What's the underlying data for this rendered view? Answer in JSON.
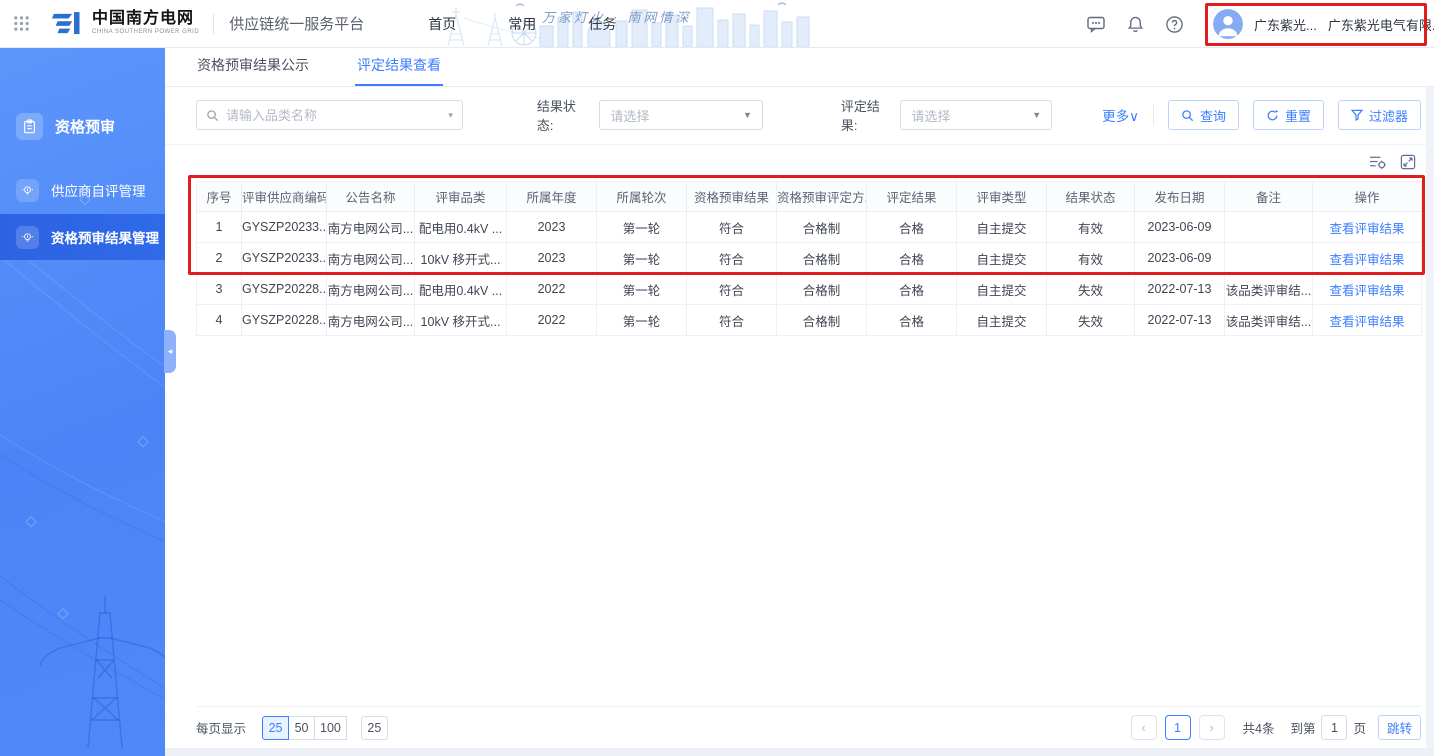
{
  "header": {
    "logo_title": "中国南方电网",
    "logo_subtitle": "CHINA SOUTHERN POWER GRID",
    "platform_title": "供应链统一服务平台",
    "slogan": "万家灯火 · 南网情深",
    "nav_items": [
      {
        "label": "首页"
      },
      {
        "label": "常用"
      },
      {
        "label": "任务"
      }
    ],
    "user_name": "广东紫光...",
    "user_company": "广东紫光电气有限..."
  },
  "sidebar": {
    "items": [
      {
        "label": "资格预审"
      },
      {
        "label": "供应商自评管理"
      },
      {
        "label": "资格预审结果管理"
      }
    ]
  },
  "tabs": [
    {
      "label": "资格预审结果公示"
    },
    {
      "label": "评定结果查看"
    }
  ],
  "filters": {
    "search_placeholder": "请输入品类名称",
    "status_label": "结果状态:",
    "status_value": "请选择",
    "result_label": "评定结果:",
    "result_value": "请选择",
    "more_label": "更多∨",
    "query_label": "查询",
    "reset_label": "重置",
    "filter_label": "过滤器"
  },
  "table": {
    "columns": [
      "序号",
      "评审供应商编码",
      "公告名称",
      "评审品类",
      "所属年度",
      "所属轮次",
      "资格预审结果",
      "资格预审评定方...",
      "评定结果",
      "评审类型",
      "结果状态",
      "发布日期",
      "备注",
      "操作"
    ],
    "action_label": "查看评审结果",
    "rows": [
      {
        "cells": [
          "1",
          "GYSZP20233...",
          "南方电网公司...",
          "配电用0.4kV ...",
          "2023",
          "第一轮",
          "符合",
          "合格制",
          "合格",
          "自主提交",
          "有效",
          "2023-06-09",
          ""
        ]
      },
      {
        "cells": [
          "2",
          "GYSZP20233...",
          "南方电网公司...",
          "10kV 移开式...",
          "2023",
          "第一轮",
          "符合",
          "合格制",
          "合格",
          "自主提交",
          "有效",
          "2023-06-09",
          ""
        ]
      },
      {
        "cells": [
          "3",
          "GYSZP20228...",
          "南方电网公司...",
          "配电用0.4kV ...",
          "2022",
          "第一轮",
          "符合",
          "合格制",
          "合格",
          "自主提交",
          "失效",
          "2022-07-13",
          "该品类评审结..."
        ]
      },
      {
        "cells": [
          "4",
          "GYSZP20228...",
          "南方电网公司...",
          "10kV 移开式...",
          "2022",
          "第一轮",
          "符合",
          "合格制",
          "合格",
          "自主提交",
          "失效",
          "2022-07-13",
          "该品类评审结..."
        ]
      }
    ]
  },
  "pagination": {
    "per_page_label": "每页显示",
    "page_size_options": [
      "25",
      "50",
      "100"
    ],
    "page_size_current": "25",
    "prev_icon": "‹",
    "next_icon": "›",
    "current_page": "1",
    "total_text": "共4条",
    "goto_prefix": "到第",
    "goto_value": "1",
    "goto_suffix": "页",
    "jump_label": "跳转"
  },
  "colors": {
    "accent_blue": "#3d7fff",
    "sidebar_blue": "#4b84f6",
    "annotation_red": "#e01c1c"
  }
}
